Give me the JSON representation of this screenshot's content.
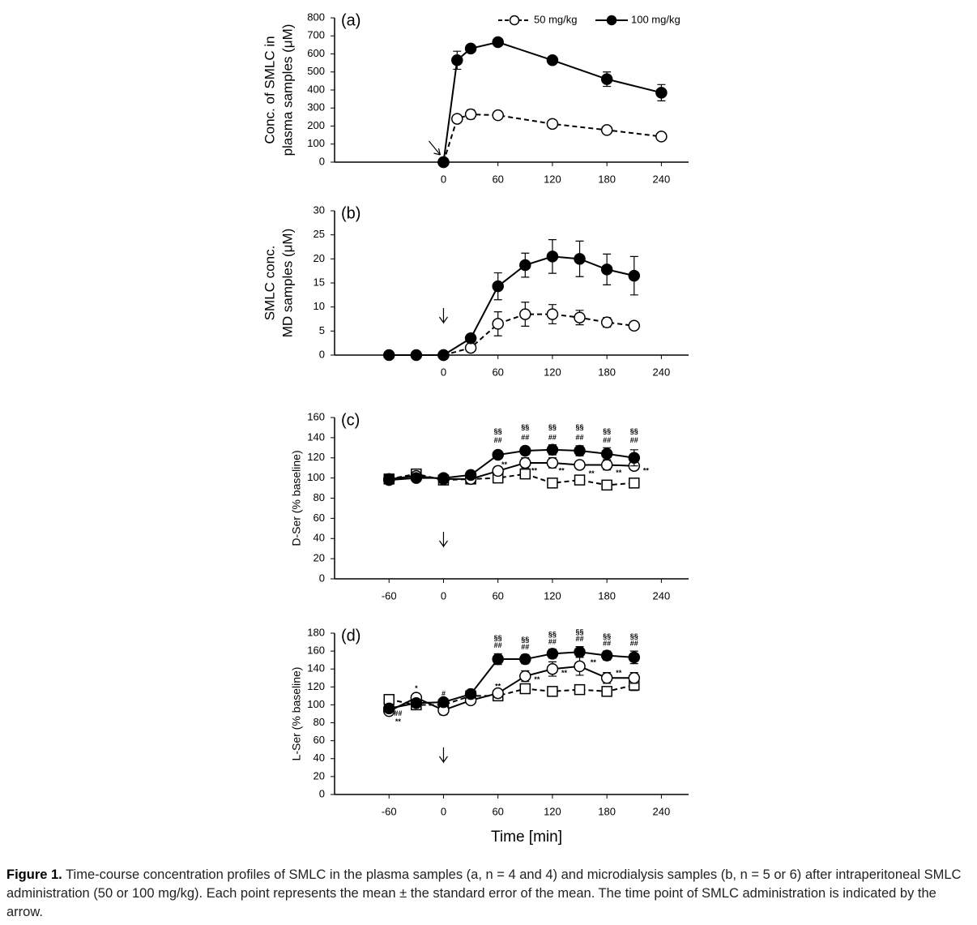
{
  "chart_data": [
    {
      "type": "line",
      "panel_label": "(a)",
      "ylabel": [
        "Conc. of SMLC in",
        "plasma samples (μM)"
      ],
      "xlim": [
        -120,
        270
      ],
      "ylim": [
        0,
        800
      ],
      "xticks": [
        0,
        60,
        120,
        180,
        240
      ],
      "yticks": [
        0,
        100,
        200,
        300,
        400,
        500,
        600,
        700,
        800
      ],
      "legend": "top-right",
      "series": [
        {
          "name": "50 mg/kg",
          "color": "#000000",
          "marker": "open-circle",
          "dash": true,
          "x": [
            0,
            15,
            30,
            60,
            120,
            180,
            240
          ],
          "values": [
            0,
            240,
            265,
            260,
            212,
            178,
            142
          ],
          "errors": [
            0,
            15,
            25,
            20,
            20,
            10,
            10
          ]
        },
        {
          "name": "100 mg/kg",
          "color": "#000000",
          "marker": "filled-circle",
          "dash": false,
          "x": [
            0,
            15,
            30,
            60,
            120,
            180,
            240
          ],
          "values": [
            0,
            565,
            630,
            665,
            565,
            460,
            385
          ],
          "errors": [
            0,
            50,
            15,
            10,
            10,
            40,
            45
          ]
        }
      ]
    },
    {
      "type": "line",
      "panel_label": "(b)",
      "ylabel": [
        "SMLC conc.",
        "MD samples (μM)"
      ],
      "xlim": [
        -120,
        270
      ],
      "ylim": [
        0,
        30
      ],
      "xticks": [
        0,
        60,
        120,
        180,
        240
      ],
      "yticks": [
        0,
        5,
        10,
        15,
        20,
        25,
        30
      ],
      "series": [
        {
          "color": "#000000",
          "marker": "open-circle",
          "dash": true,
          "x": [
            0,
            30,
            60,
            90,
            120,
            150,
            180,
            210
          ],
          "values": [
            0,
            1.5,
            6.5,
            8.5,
            8.5,
            7.8,
            6.8,
            6.1
          ],
          "errors": [
            0,
            0.3,
            2.5,
            2.5,
            2,
            1.5,
            1,
            0
          ]
        },
        {
          "color": "#000000",
          "marker": "filled-circle",
          "dash": false,
          "x": [
            -60,
            -30,
            0,
            30,
            60,
            90,
            120,
            150,
            180,
            210
          ],
          "values": [
            0,
            0,
            0,
            3.5,
            14.3,
            18.7,
            20.5,
            20,
            17.8,
            16.5
          ],
          "errors": [
            0,
            0,
            0,
            0.5,
            2.8,
            2.5,
            3.5,
            3.7,
            3.2,
            4
          ]
        }
      ]
    },
    {
      "type": "line",
      "panel_label": "(c)",
      "ylabel": [
        "D-Ser (% baseline)"
      ],
      "xlim": [
        -120,
        270
      ],
      "ylim": [
        0,
        160
      ],
      "xticks": [
        -60,
        0,
        60,
        120,
        180,
        240
      ],
      "yticks": [
        0,
        20,
        40,
        60,
        80,
        100,
        120,
        140,
        160
      ],
      "series": [
        {
          "color": "#000000",
          "marker": "open-square",
          "dash": true,
          "x": [
            -60,
            -30,
            0,
            30,
            60,
            90,
            120,
            150,
            180,
            210
          ],
          "values": [
            99,
            104,
            98,
            99,
            100,
            104,
            95,
            98,
            93,
            95
          ],
          "errors": [
            3,
            3,
            3,
            2,
            4,
            4,
            3,
            3,
            4,
            4
          ]
        },
        {
          "color": "#000000",
          "marker": "open-circle",
          "dash": false,
          "x": [
            -60,
            -30,
            0,
            30,
            60,
            90,
            120,
            150,
            180,
            210
          ],
          "values": [
            99,
            102,
            99,
            99,
            107,
            115,
            115,
            113,
            113,
            112
          ],
          "errors": [
            2,
            2,
            2,
            2,
            4,
            5,
            5,
            4,
            5,
            3
          ]
        },
        {
          "color": "#000000",
          "marker": "filled-circle",
          "dash": false,
          "x": [
            -60,
            -30,
            0,
            30,
            60,
            90,
            120,
            150,
            180,
            210
          ],
          "values": [
            98,
            100,
            100,
            103,
            123,
            127,
            128,
            127,
            124,
            120
          ],
          "errors": [
            2,
            2,
            2,
            3,
            3,
            4,
            5,
            5,
            6,
            8
          ]
        }
      ],
      "annotations": [
        {
          "text": "§§",
          "x": 60,
          "y": 146
        },
        {
          "text": "##",
          "x": 60,
          "y": 137
        },
        {
          "text": "§§",
          "x": 90,
          "y": 150
        },
        {
          "text": "##",
          "x": 90,
          "y": 140
        },
        {
          "text": "§§",
          "x": 120,
          "y": 150
        },
        {
          "text": "##",
          "x": 120,
          "y": 140
        },
        {
          "text": "§§",
          "x": 150,
          "y": 150
        },
        {
          "text": "##",
          "x": 150,
          "y": 140
        },
        {
          "text": "§§",
          "x": 180,
          "y": 146
        },
        {
          "text": "##",
          "x": 180,
          "y": 137
        },
        {
          "text": "§§",
          "x": 210,
          "y": 146
        },
        {
          "text": "##",
          "x": 210,
          "y": 137
        },
        {
          "text": "**",
          "x": 67,
          "y": 113
        },
        {
          "text": "**",
          "x": 100,
          "y": 107
        },
        {
          "text": "**",
          "x": 130,
          "y": 107
        },
        {
          "text": "**",
          "x": 163,
          "y": 104
        },
        {
          "text": "**",
          "x": 193,
          "y": 105
        },
        {
          "text": "**",
          "x": 223,
          "y": 107
        }
      ]
    },
    {
      "type": "line",
      "panel_label": "(d)",
      "ylabel": [
        "L-Ser (% baseline)"
      ],
      "xlabel": "Time [min]",
      "xlim": [
        -120,
        270
      ],
      "ylim": [
        0,
        180
      ],
      "xticks": [
        -60,
        0,
        60,
        120,
        180,
        240
      ],
      "yticks": [
        0,
        20,
        40,
        60,
        80,
        100,
        120,
        140,
        160,
        180
      ],
      "series": [
        {
          "color": "#000000",
          "marker": "open-square",
          "dash": true,
          "x": [
            -60,
            -30,
            0,
            30,
            60,
            90,
            120,
            150,
            180,
            210
          ],
          "values": [
            106,
            100,
            100,
            110,
            110,
            118,
            115,
            117,
            115,
            122
          ],
          "errors": [
            3,
            3,
            3,
            3,
            3,
            4,
            4,
            5,
            5,
            6
          ]
        },
        {
          "color": "#000000",
          "marker": "open-circle",
          "dash": false,
          "x": [
            -60,
            -30,
            0,
            30,
            60,
            90,
            120,
            150,
            180,
            210
          ],
          "values": [
            93,
            108,
            94,
            105,
            113,
            132,
            140,
            143,
            130,
            130
          ],
          "errors": [
            3,
            3,
            5,
            3,
            4,
            6,
            8,
            10,
            6,
            6
          ]
        },
        {
          "color": "#000000",
          "marker": "filled-circle",
          "dash": false,
          "x": [
            -60,
            -30,
            0,
            30,
            60,
            90,
            120,
            150,
            180,
            210
          ],
          "values": [
            96,
            102,
            103,
            112,
            151,
            151,
            157,
            159,
            155,
            153
          ],
          "errors": [
            3,
            3,
            3,
            3,
            6,
            5,
            5,
            6,
            5,
            7
          ]
        }
      ],
      "annotations": [
        {
          "text": "##",
          "x": -50,
          "y": 90
        },
        {
          "text": "**",
          "x": -50,
          "y": 81
        },
        {
          "text": "*",
          "x": -30,
          "y": 118
        },
        {
          "text": "#",
          "x": 0,
          "y": 112
        },
        {
          "text": "§§",
          "x": 60,
          "y": 174
        },
        {
          "text": "##",
          "x": 60,
          "y": 166
        },
        {
          "text": "§§",
          "x": 90,
          "y": 172
        },
        {
          "text": "##",
          "x": 90,
          "y": 164
        },
        {
          "text": "§§",
          "x": 120,
          "y": 178
        },
        {
          "text": "##",
          "x": 120,
          "y": 170
        },
        {
          "text": "§§",
          "x": 150,
          "y": 181
        },
        {
          "text": "##",
          "x": 150,
          "y": 173
        },
        {
          "text": "§§",
          "x": 180,
          "y": 176
        },
        {
          "text": "##",
          "x": 180,
          "y": 168
        },
        {
          "text": "§§",
          "x": 210,
          "y": 176
        },
        {
          "text": "##",
          "x": 210,
          "y": 168
        },
        {
          "text": "**",
          "x": 60,
          "y": 120
        },
        {
          "text": "**",
          "x": 103,
          "y": 128
        },
        {
          "text": "**",
          "x": 133,
          "y": 135
        },
        {
          "text": "**",
          "x": 165,
          "y": 147
        },
        {
          "text": "**",
          "x": 193,
          "y": 135
        }
      ]
    }
  ],
  "caption": {
    "label": "Figure 1.",
    "text": "Time-course concentration profiles of SMLC in the plasma samples (a, n = 4 and 4) and microdialysis samples (b, n = 5 or 6) after intraperitoneal SMLC administration (50 or 100 mg/kg). Each point represents the mean ± the standard error of the mean. The time point of SMLC administration is indicated by the arrow."
  }
}
